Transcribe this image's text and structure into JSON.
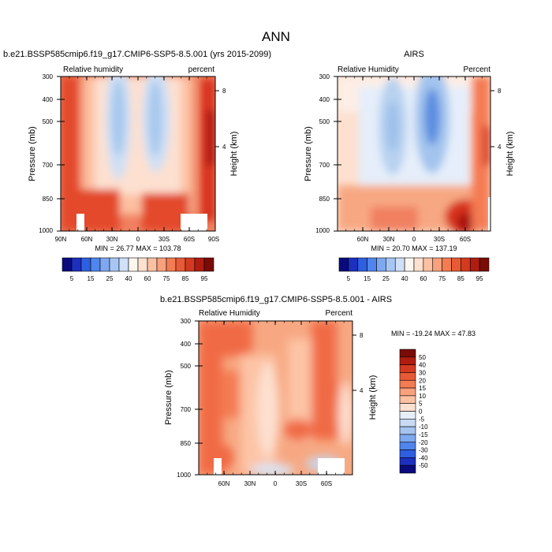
{
  "figure": {
    "title": "ANN",
    "colorbar_abs_levels": [
      "5",
      "15",
      "25",
      "40",
      "60",
      "75",
      "85",
      "95"
    ],
    "colorbar_diff_levels": [
      "50",
      "40",
      "30",
      "20",
      "15",
      "10",
      "5",
      "0",
      "-5",
      "-10",
      "-15",
      "-20",
      "-30",
      "-40",
      "-50"
    ]
  },
  "chart_data": [
    {
      "type": "heatmap",
      "title": "b.e21.BSSP585cmip6.f19_g17.CMIP6-SSP5-8.5.001 (yrs 2015-2099)",
      "left_label": "Relative humidity",
      "right_label": "percent",
      "ylabel": "Pressure (mb)",
      "y2label": "Height (km)",
      "x_tick_labels": [
        "90N",
        "60N",
        "30N",
        "0",
        "30S",
        "60S",
        "90S"
      ],
      "y_tick_labels": [
        "300",
        "400",
        "500",
        "700",
        "850",
        "1000"
      ],
      "y2_tick_labels": [
        "8",
        "4"
      ],
      "stats": "MIN = 26.77  MAX = 103.78",
      "colorscale": "absolute"
    },
    {
      "type": "heatmap",
      "title": "AIRS",
      "left_label": "Relative Humidity",
      "right_label": "Percent",
      "ylabel": "Pressure (mb)",
      "y2label": "Height (km)",
      "x_tick_labels": [
        "60N",
        "30N",
        "0",
        "30S",
        "60S"
      ],
      "y_tick_labels": [
        "300",
        "400",
        "500",
        "700",
        "850",
        "1000"
      ],
      "y2_tick_labels": [
        "8",
        "4"
      ],
      "stats": "MIN = 20.70  MAX = 137.19",
      "colorscale": "absolute"
    },
    {
      "type": "heatmap",
      "title": "b.e21.BSSP585cmip6.f19_g17.CMIP6-SSP5-8.5.001 - AIRS",
      "left_label": "Relative Humidity",
      "right_label": "Percent",
      "ylabel": "Pressure (mb)",
      "y2label": "Height (km)",
      "x_tick_labels": [
        "60N",
        "30N",
        "0",
        "30S",
        "60S"
      ],
      "y_tick_labels": [
        "300",
        "400",
        "500",
        "700",
        "850",
        "1000"
      ],
      "y2_tick_labels": [
        "8",
        "4"
      ],
      "stats": "MIN = -19.24  MAX = 47.83",
      "colorscale": "difference"
    }
  ]
}
